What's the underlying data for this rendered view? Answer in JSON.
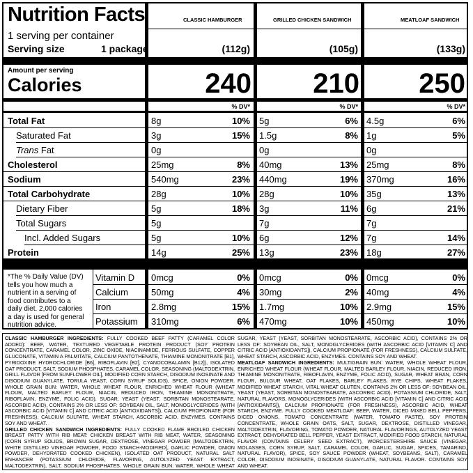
{
  "title": "Nutrition Facts",
  "servings_per_container": "1 serving per container",
  "serving_size_label": "Serving size",
  "serving_size_value": "1 package",
  "amount_per_serving": "Amount per serving",
  "calories_label": "Calories",
  "dv_header": "% DV*",
  "products": [
    {
      "name": "CLASSIC HAMBURGER",
      "weight": "(112g)",
      "calories": "240",
      "values": [
        "8g",
        "3g",
        "0g",
        "25mg",
        "540mg",
        "28g",
        "5g",
        "5g",
        "5g",
        "14g"
      ],
      "dv": [
        "10%",
        "15%",
        "",
        "8%",
        "23%",
        "10%",
        "18%",
        "",
        "10%",
        "25%"
      ],
      "vitamins": [
        "0mcg",
        "50mg",
        "2.8mg",
        "310mg"
      ],
      "vitamins_dv": [
        "0%",
        "4%",
        "15%",
        "6%"
      ]
    },
    {
      "name": "GRILLED CHICKEN SANDWICH",
      "weight": "(105g)",
      "calories": "210",
      "values": [
        "5g",
        "1.5g",
        "0g",
        "40mg",
        "440mg",
        "28g",
        "3g",
        "7g",
        "6g",
        "13g"
      ],
      "dv": [
        "6%",
        "8%",
        "",
        "13%",
        "19%",
        "10%",
        "11%",
        "",
        "12%",
        "23%"
      ],
      "vitamins": [
        "0mcg",
        "30mg",
        "1.7mg",
        "470mg"
      ],
      "vitamins_dv": [
        "0%",
        "2%",
        "10%",
        "10%"
      ]
    },
    {
      "name": "MEATLOAF SANDWICH",
      "weight": "(133g)",
      "calories": "250",
      "values": [
        "4.5g",
        "1g",
        "0g",
        "25mg",
        "370mg",
        "35g",
        "6g",
        "7g",
        "7g",
        "18g"
      ],
      "dv": [
        "6%",
        "5%",
        "",
        "8%",
        "16%",
        "13%",
        "21%",
        "",
        "14%",
        "27%"
      ],
      "vitamins": [
        "0mcg",
        "40mg",
        "2.9mg",
        "450mg"
      ],
      "vitamins_dv": [
        "0%",
        "4%",
        "15%",
        "10%"
      ]
    }
  ],
  "nutrients": [
    "Total Fat",
    "Saturated Fat",
    "Trans Fat",
    "Cholesterol",
    "Sodium",
    "Total Carbohydrate",
    "Dietary Fiber",
    "Total Sugars",
    "Incl. Added Sugars",
    "Protein"
  ],
  "vitamins": [
    "Vitamin D",
    "Calcium",
    "Iron",
    "Potassium"
  ],
  "footnote_lines": [
    "*The % Daily Value (DV)",
    "tells you how much a",
    "nutrient in a serving of",
    "food contributes to a",
    "daily diet. 2,000 calories",
    "a day is used for general",
    "nutrition advice."
  ],
  "ingredients": {
    "hamburger_title": "CLASSIC HAMBURGER INGREDIENTS:",
    "hamburger_text": "FULLY COOKED BEEF PATTY (CARAMEL COLOR ADDED): BEEF, WATER, TEXTURED VEGETABLE PROTEIN PRODUCT (SOY PROTEIN CONCENTRATE, CARAMEL COLOR, ZINC OXIDE, NIACINAMIDE, FERROUS SULFATE, COPPER GLUCONATE, VITAMIN A PALMITATE, CALCIUM PANTOTHENATE, THIAMINE MONONITRATE [B1], PYRIDOXINE HYDROCHLORIDE [B6], RIBOFLAVIN [B2], CYANOCOBALAMIN [B12]), ISOLATED OAT PRODUCT, SALT, SODIUM PHOSPHATES, CARAMEL COLOR, SEASONING (MALTODEXTRIN, GRILL FLAVOR [FROM SUNFLOWER OIL], MODIFIED CORN STARCH, DISODIUM INOSINATE AND DISODIUM GUANYLATE, TORULA YEAST, CORN SYRUP SOLIDS), SPICE, ONION POWDER. WHOLE GRAIN BUN: WATER, WHOLE WHEAT FLOUR, ENRICHED WHEAT FLOUR (WHEAT FLOUR, MALTED BARLEY FLOUR, NIACIN, REDUCED IRON, THIAMINE MONONITRATE, RIBOFLAVIN, ENZYME, FOLIC ACID), SUGAR, YEAST (YEAST, SORBITAN MONOSTEARATE, ASCORBIC ACID), CONTAINS 2% OR LESS OF: SOYBEAN OIL, SALT, MONOGLYCERIDES (WITH ASCORBIC ACID [VITAMIN C] AND CITRIC ACID [ANTIOXIDANTS]), CALCIUM PROPIONATE (FOR FRESHNESS), CALCIUM SULFATE, WHEAT STARCH, ASCORBIC ACID, ENZYMES. CONTAINS SOY AND WHEAT.",
    "chicken_title": "GRILLED CHICKEN SANDWICH INGREDIENTS:",
    "chicken_text": "FULLY COOKED FLAME BROILED CHICKEN BREAST PATTY WITH RIB MEAT: CHICKEN BREAST WITH RIB MEAT, WATER, SEASONING (CORN SYRUP SOLIDS, BROWN SUGAR, DEXTROSE, VINEGAR POWDER [MALTODEXTRIN, WHITE DISTILLED VINEGAR POWDER, FOOD STARCH-MODIFIED], GARLIC POWDER, ONION POWDER, DEHYDRATED COOKED CHICKEN), ISOLATED OAT PRODUCT, NATURAL SALT ENHANCER (POTASSIUM CHLORIDE, FLAVORING, AUTOLYZED YEAST EXTRACT, MALTODEXTRIN), SALT, SODIUM PHOSPHATES. WHOLE GRAIN BUN: WATER, WHOLE WHEAT FLOUR, ENRICHED WHEAT FLOUR (WHEAT FLOUR, MALTED BARLEY FLOUR, NIACIN, REDUCED IRON, THIAMINE MONONITRATE, RIBOFLAVIN, ENZYME, FOLIC ACID),",
    "chicken_cont": "SUGAR, YEAST (YEAST, SORBITAN MONOSTEARATE, ASCORBIC ACID), CONTAINS 2% OR LESS OF: SOYBEAN OIL, SALT, MONOGLYCERIDES (WITH ASCORBIC ACID [VITAMIN C] AND CITRIC ACID [ANTIOXIDANTS]), CALCIUM PROPIONATE (FOR FRESHNESS), CALCIUM SULFATE, WHEAT STARCH, ASCORBIC ACID, ENZYMES. CONTAINS SOY AND WHEAT.",
    "meatloaf_title": "MEATLOAF SANDWICH INGREDIENTS:",
    "meatloaf_text": "MULTIGRAIN BUN: WATER, WHOLE WHEAT FLOUR, ENRICHED WHEAT FLOUR (WHEAT FLOUR, MALTED BARLEY FLOUR, NIACIN, REDUCED IRON, THIAMINE MONONITRATE, RIBOFLAVIN, ENZYME, FOLIC ACID), SUGAR, WHEAT BRAN, CORN FLOUR, BULGUR WHEAT, OAT FLAKES, BARLEY FLAKES, RYE CHIPS, WHEAT FLAKES, MODIFIED WHEAT STARCH, VITAL WHEAT GLUTEN, CONTAINS 2% OR LESS OF: SOYBEAN OIL, YEAST (YEAST, SORBITAN MONOSTEARATE, ASCORBIC ACID), POTASSIUM CHLORIDE, SALT, NATURAL FLAVORS, MONOGLYCERIDES (WITH ASCORBIC ACID [VITAMIN C] AND CITRIC ACID [ANTIOXIDANTS]), CALCIUM PROPIONATE (FOR FRESHNESS), ASCORBIC ACID, WHEAT STARCH, ENZYME. FULLY COOKED MEATLOAF: BEEF, WATER, DICED MIXED BELL PEPPERS, DICED ONIONS, TOMATO CONCENTRATE (WATER, TOMATO PASTE), SOY PROTEIN CONCENTRATE, WHOLE GRAIN OATS, SALT, SUGAR, DEXTROSE, DISTILLED VINEGAR, MALTODEXTRIN, FLAVORING, TOMATO POWDER, NATURAL FLAVORINGS, AUTOLYZED YEAST EXTRACT, DEHYDRATED BELL PEPPER, YEAST EXTRACT, MODIFIED FOOD STARCH, NATURAL FLAVOR (CONTAINS CELERY SEED EXTRACT), WORCESTERSHIRE SAUCE (VINEGAR, MOLASSES, CORN SYRUP, SALT, CARAMEL COLOR, GARLIC, SUGAR, SPICES, TAMARIND, NATURAL FLAVOR), SPICE, SOY SAUCE POWDER (WHEAT, SOYBEANS, SALT), CARAMEL COLOR, DISODIUM INOSINATE, DISODIUM GUANYLATE, NATURAL FLAVOR. CONTAINS SOY AND WHEAT."
  }
}
